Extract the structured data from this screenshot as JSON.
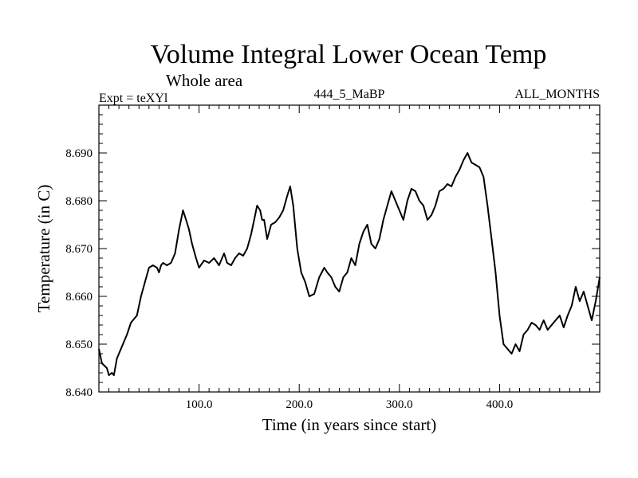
{
  "chart_data": {
    "type": "line",
    "title": "Volume Integral Lower Ocean Temp",
    "subtitle": "Whole area",
    "expt": "Expt = teXYl",
    "experiment_id": "444_5_MaBP",
    "months": "ALL_MONTHS",
    "xlabel": "Time (in years since start)",
    "ylabel": "Temperature (in C)",
    "xlim": [
      0,
      500
    ],
    "ylim": [
      8.64,
      8.7
    ],
    "x_ticks": [
      100,
      200,
      300,
      400
    ],
    "x_tick_labels": [
      "100.0",
      "200.0",
      "300.0",
      "400.0"
    ],
    "y_ticks": [
      8.64,
      8.65,
      8.66,
      8.67,
      8.68,
      8.69
    ],
    "y_tick_labels": [
      "8.640",
      "8.650",
      "8.660",
      "8.670",
      "8.680",
      "8.690"
    ],
    "grid": false,
    "line_color": "#000000",
    "series": [
      {
        "x": [
          0,
          3,
          8,
          10,
          13,
          15,
          18,
          22,
          28,
          32,
          38,
          42,
          46,
          50,
          54,
          58,
          60,
          62,
          64,
          68,
          72,
          76,
          80,
          84,
          87,
          90,
          93,
          97,
          100,
          105,
          110,
          115,
          120,
          125,
          128,
          132,
          136,
          140,
          144,
          148,
          152,
          155,
          158,
          161,
          163,
          165,
          168,
          172,
          176,
          180,
          184,
          188,
          191,
          194,
          198,
          202,
          206,
          210,
          215,
          220,
          225,
          228,
          232,
          236,
          240,
          244,
          248,
          252,
          256,
          260,
          264,
          268,
          272,
          276,
          280,
          284,
          288,
          292,
          296,
          300,
          304,
          308,
          312,
          316,
          320,
          324,
          328,
          332,
          336,
          340,
          344,
          348,
          352,
          356,
          360,
          364,
          368,
          372,
          376,
          380,
          384,
          388,
          392,
          396,
          400,
          404,
          408,
          412,
          416,
          420,
          424,
          428,
          432,
          436,
          440,
          444,
          448,
          452,
          456,
          460,
          464,
          468,
          472,
          476,
          480,
          484,
          488,
          492,
          496,
          500
        ],
        "y": [
          8.649,
          8.646,
          8.645,
          8.6435,
          8.644,
          8.6435,
          8.647,
          8.649,
          8.652,
          8.6545,
          8.656,
          8.66,
          8.663,
          8.666,
          8.6665,
          8.666,
          8.665,
          8.6665,
          8.667,
          8.6665,
          8.667,
          8.669,
          8.674,
          8.678,
          8.676,
          8.674,
          8.671,
          8.668,
          8.666,
          8.6675,
          8.667,
          8.668,
          8.6665,
          8.669,
          8.667,
          8.6665,
          8.668,
          8.669,
          8.6685,
          8.67,
          8.673,
          8.676,
          8.679,
          8.678,
          8.676,
          8.676,
          8.672,
          8.675,
          8.6755,
          8.6765,
          8.678,
          8.681,
          8.683,
          8.679,
          8.67,
          8.665,
          8.663,
          8.66,
          8.6605,
          8.664,
          8.666,
          8.665,
          8.664,
          8.662,
          8.661,
          8.664,
          8.665,
          8.668,
          8.6665,
          8.671,
          8.6735,
          8.675,
          8.671,
          8.67,
          8.672,
          8.676,
          8.679,
          8.682,
          8.68,
          8.678,
          8.676,
          8.68,
          8.6825,
          8.682,
          8.68,
          8.679,
          8.676,
          8.677,
          8.679,
          8.682,
          8.6825,
          8.6835,
          8.683,
          8.685,
          8.6865,
          8.6885,
          8.69,
          8.688,
          8.6875,
          8.687,
          8.685,
          8.679,
          8.672,
          8.665,
          8.656,
          8.65,
          8.649,
          8.648,
          8.65,
          8.6485,
          8.652,
          8.653,
          8.6545,
          8.654,
          8.653,
          8.655,
          8.653,
          8.654,
          8.655,
          8.656,
          8.6535,
          8.656,
          8.658,
          8.662,
          8.659,
          8.661,
          8.658,
          8.655,
          8.659,
          8.664
        ]
      }
    ]
  }
}
